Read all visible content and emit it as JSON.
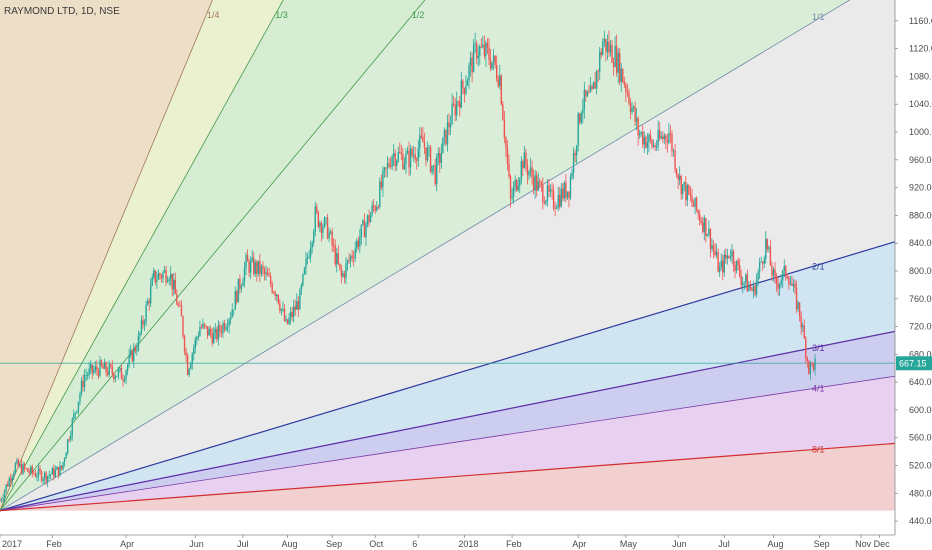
{
  "chart_data": {
    "type": "candlestick",
    "title": "RAYMOND LTD, 1D, NSE",
    "ylim": [
      420,
      1190
    ],
    "y_ticks": [
      440,
      480,
      520,
      560,
      600,
      640,
      680,
      720,
      760,
      800,
      840,
      880,
      920,
      960,
      1000,
      1040,
      1080,
      1120,
      1160
    ],
    "x_ticks": [
      "2017",
      "Feb",
      "Apr",
      "Jun",
      "Jul",
      "Aug",
      "Sep",
      "Oct",
      "6",
      "2018",
      "Feb",
      "Apr",
      "May",
      "Jun",
      "Jul",
      "Aug",
      "Sep",
      "Nov",
      "Dec"
    ],
    "last_price": "667.15",
    "price_line_level": 667.15,
    "colors": {
      "up": "#26a69a",
      "down": "#ef5350",
      "last_price_bg": "#26a69a"
    },
    "gann_fan_labels": [
      "1/4",
      "1/3",
      "1/2",
      "1/1",
      "2/1",
      "3/1",
      "4/1",
      "8/1"
    ],
    "price_path": [
      {
        "i": 0,
        "p": 470
      },
      {
        "i": 10,
        "p": 520
      },
      {
        "i": 20,
        "p": 510
      },
      {
        "i": 30,
        "p": 505
      },
      {
        "i": 40,
        "p": 515
      },
      {
        "i": 45,
        "p": 565
      },
      {
        "i": 55,
        "p": 650
      },
      {
        "i": 65,
        "p": 660
      },
      {
        "i": 80,
        "p": 650
      },
      {
        "i": 90,
        "p": 700
      },
      {
        "i": 100,
        "p": 790
      },
      {
        "i": 110,
        "p": 800
      },
      {
        "i": 118,
        "p": 730
      },
      {
        "i": 122,
        "p": 660
      },
      {
        "i": 130,
        "p": 720
      },
      {
        "i": 140,
        "p": 705
      },
      {
        "i": 150,
        "p": 740
      },
      {
        "i": 160,
        "p": 810
      },
      {
        "i": 170,
        "p": 800
      },
      {
        "i": 180,
        "p": 770
      },
      {
        "i": 186,
        "p": 720
      },
      {
        "i": 195,
        "p": 760
      },
      {
        "i": 205,
        "p": 880
      },
      {
        "i": 213,
        "p": 860
      },
      {
        "i": 222,
        "p": 790
      },
      {
        "i": 232,
        "p": 840
      },
      {
        "i": 245,
        "p": 900
      },
      {
        "i": 255,
        "p": 970
      },
      {
        "i": 265,
        "p": 960
      },
      {
        "i": 275,
        "p": 985
      },
      {
        "i": 283,
        "p": 940
      },
      {
        "i": 293,
        "p": 1020
      },
      {
        "i": 302,
        "p": 1070
      },
      {
        "i": 310,
        "p": 1120
      },
      {
        "i": 318,
        "p": 1110
      },
      {
        "i": 325,
        "p": 1080
      },
      {
        "i": 332,
        "p": 900
      },
      {
        "i": 340,
        "p": 960
      },
      {
        "i": 350,
        "p": 920
      },
      {
        "i": 360,
        "p": 900
      },
      {
        "i": 370,
        "p": 920
      },
      {
        "i": 378,
        "p": 1040
      },
      {
        "i": 385,
        "p": 1050
      },
      {
        "i": 392,
        "p": 1130
      },
      {
        "i": 400,
        "p": 1110
      },
      {
        "i": 408,
        "p": 1060
      },
      {
        "i": 415,
        "p": 1000
      },
      {
        "i": 425,
        "p": 980
      },
      {
        "i": 435,
        "p": 1000
      },
      {
        "i": 442,
        "p": 930
      },
      {
        "i": 452,
        "p": 890
      },
      {
        "i": 460,
        "p": 860
      },
      {
        "i": 468,
        "p": 800
      },
      {
        "i": 475,
        "p": 830
      },
      {
        "i": 482,
        "p": 790
      },
      {
        "i": 490,
        "p": 770
      },
      {
        "i": 498,
        "p": 840
      },
      {
        "i": 504,
        "p": 780
      },
      {
        "i": 512,
        "p": 800
      },
      {
        "i": 520,
        "p": 740
      },
      {
        "i": 526,
        "p": 660
      },
      {
        "i": 530,
        "p": 667
      }
    ],
    "gann_fan": {
      "origin_index": 0,
      "origin_price": 455,
      "one_by_one_reference": {
        "index": 530,
        "price": 1160
      },
      "last_data_index": 530,
      "axis_end_index": 572
    }
  }
}
